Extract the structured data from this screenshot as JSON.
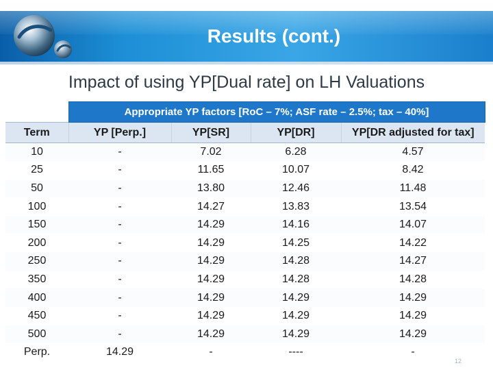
{
  "slide": {
    "title": "Results (cont.)",
    "subtitle": "Impact of using YP[Dual rate] on LH Valuations",
    "page_number": "12"
  },
  "colors": {
    "banner_blue": "#1d8fd6",
    "group_header_bg": "#1f77c9",
    "column_header_bg": "#dbe6f2"
  },
  "logo": {
    "icon": "globe-logo-icon"
  },
  "table": {
    "group_header": "Appropriate YP factors  [RoC – 7%; ASF rate – 2.5%; tax – 40%]",
    "columns": [
      "Term",
      "YP [Perp.]",
      "YP[SR]",
      "YP[DR]",
      "YP[DR adjusted for tax]"
    ],
    "rows": [
      [
        "10",
        "-",
        "7.02",
        "6.28",
        "4.57"
      ],
      [
        "25",
        "-",
        "11.65",
        "10.07",
        "8.42"
      ],
      [
        "50",
        "-",
        "13.80",
        "12.46",
        "11.48"
      ],
      [
        "100",
        "-",
        "14.27",
        "13.83",
        "13.54"
      ],
      [
        "150",
        "-",
        "14.29",
        "14.16",
        "14.07"
      ],
      [
        "200",
        "-",
        "14.29",
        "14.25",
        "14.22"
      ],
      [
        "250",
        "-",
        "14.29",
        "14.28",
        "14.27"
      ],
      [
        "350",
        "-",
        "14.29",
        "14.28",
        "14.28"
      ],
      [
        "400",
        "-",
        "14.29",
        "14.29",
        "14.29"
      ],
      [
        "450",
        "-",
        "14.29",
        "14.29",
        "14.29"
      ],
      [
        "500",
        "-",
        "14.29",
        "14.29",
        "14.29"
      ],
      [
        "Perp.",
        "14.29",
        "-",
        "----",
        "-"
      ]
    ]
  }
}
